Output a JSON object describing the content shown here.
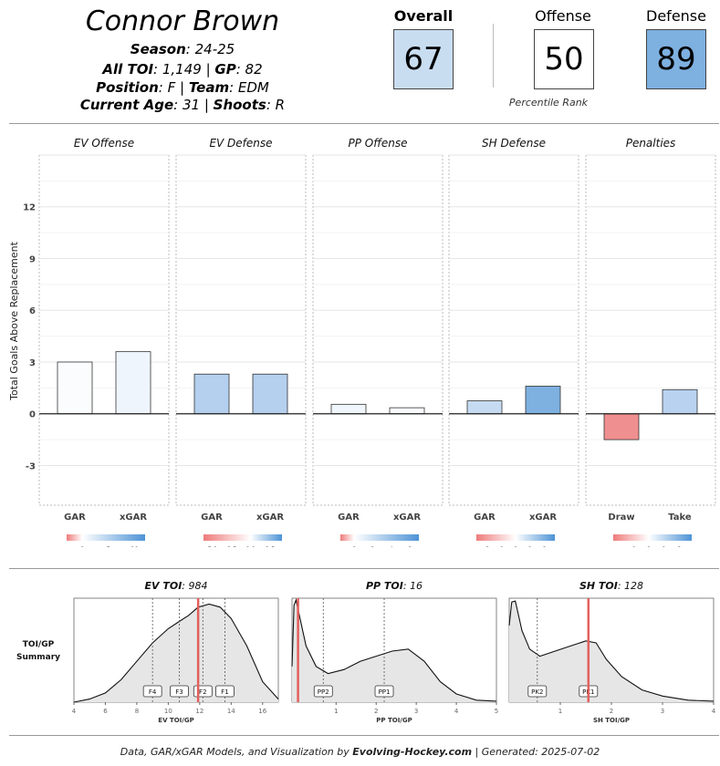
{
  "player": {
    "name": "Connor Brown",
    "season_label": "Season",
    "season": "24-25",
    "toi_label": "All TOI",
    "toi": "1,149",
    "gp_label": "GP",
    "gp": "82",
    "position_label": "Position",
    "position": "F",
    "team_label": "Team",
    "team": "EDM",
    "age_label": "Current Age",
    "age": "31",
    "shoots_label": "Shoots",
    "shoots": "R"
  },
  "scores": {
    "overall_label": "Overall",
    "overall": "67",
    "overall_color": "#c9ddf1",
    "offense_label": "Offense",
    "offense": "50",
    "offense_color": "#ffffff",
    "defense_label": "Defense",
    "defense": "89",
    "defense_color": "#7eb0e0",
    "percentile_label": "Percentile Rank"
  },
  "chart_data": [
    {
      "type": "bar",
      "ylabel": "Total Goals Above Replacement",
      "ylim": [
        -5.3,
        15
      ],
      "yticks": [
        -3,
        0,
        3,
        6,
        9,
        12
      ],
      "grid": true,
      "panels": [
        {
          "title": "EV Offense",
          "categories": [
            "GAR",
            "xGAR"
          ],
          "values": [
            3.0,
            3.6
          ],
          "colors": [
            "#fbfcfe",
            "#eff5fc"
          ],
          "scale": {
            "ticks": [
              "0",
              "5",
              "10"
            ],
            "min": -3,
            "max": 12
          }
        },
        {
          "title": "EV Defense",
          "categories": [
            "GAR",
            "xGAR"
          ],
          "values": [
            2.3,
            2.3
          ],
          "colors": [
            "#b5cfee",
            "#b5cfee"
          ],
          "scale": {
            "ticks": [
              "-5.0",
              "-2.5",
              "0.0",
              "2.5"
            ],
            "min": -6,
            "max": 4
          }
        },
        {
          "title": "PP Offense",
          "categories": [
            "GAR",
            "xGAR"
          ],
          "values": [
            0.55,
            0.35
          ],
          "colors": [
            "#f0f6fc",
            "#f9fbfe"
          ],
          "scale": {
            "ticks": [
              "0",
              "2",
              "4",
              "6"
            ],
            "min": -1.5,
            "max": 7
          }
        },
        {
          "title": "SH Defense",
          "categories": [
            "GAR",
            "xGAR"
          ],
          "values": [
            0.75,
            1.6
          ],
          "colors": [
            "#c6dbf1",
            "#7eb0e0"
          ],
          "scale": {
            "ticks": [
              "-2",
              "-1",
              "0",
              "1",
              "2"
            ],
            "min": -2.7,
            "max": 2.7
          }
        },
        {
          "title": "Penalties",
          "categories": [
            "Draw",
            "Take"
          ],
          "values": [
            -1.5,
            1.4
          ],
          "colors": [
            "#f08f8f",
            "#b9d2ef"
          ],
          "scale": {
            "ticks": [
              "-1",
              "0",
              "1",
              "2"
            ],
            "min": -2.3,
            "max": 2.8
          }
        }
      ]
    },
    {
      "type": "area",
      "side_label_1": "TOI/GP",
      "side_label_2": "Summary",
      "panels": [
        {
          "title_bold": "EV TOI",
          "title_value": "984",
          "xlabel": "EV TOI/GP",
          "xlim": [
            4,
            17
          ],
          "xticks": [
            "4",
            "6",
            "8",
            "10",
            "12",
            "14",
            "16"
          ],
          "player_value": 11.9,
          "markers": [
            {
              "label": "F4",
              "x": 9.0
            },
            {
              "label": "F3",
              "x": 10.7
            },
            {
              "label": "F2",
              "x": 12.2
            },
            {
              "label": "F1",
              "x": 13.6
            }
          ],
          "density": [
            [
              4,
              0.0
            ],
            [
              5,
              0.03
            ],
            [
              6,
              0.09
            ],
            [
              7,
              0.22
            ],
            [
              8,
              0.4
            ],
            [
              9,
              0.58
            ],
            [
              10,
              0.72
            ],
            [
              10.7,
              0.79
            ],
            [
              11.3,
              0.85
            ],
            [
              11.9,
              0.93
            ],
            [
              12.6,
              0.96
            ],
            [
              13.3,
              0.93
            ],
            [
              14,
              0.82
            ],
            [
              15,
              0.55
            ],
            [
              16,
              0.2
            ],
            [
              17,
              0.03
            ]
          ]
        },
        {
          "title_bold": "PP TOI",
          "title_value": "16",
          "xlabel": "PP TOI/GP",
          "xlim": [
            -0.1,
            5
          ],
          "xticks": [
            "1",
            "2",
            "3",
            "4",
            "5"
          ],
          "player_value": 0.05,
          "markers": [
            {
              "label": "PP2",
              "x": 0.68
            },
            {
              "label": "PP1",
              "x": 2.2
            }
          ],
          "density": [
            [
              -0.1,
              0.35
            ],
            [
              -0.05,
              0.95
            ],
            [
              0.0,
              1.0
            ],
            [
              0.1,
              0.82
            ],
            [
              0.25,
              0.55
            ],
            [
              0.5,
              0.35
            ],
            [
              0.8,
              0.28
            ],
            [
              1.2,
              0.32
            ],
            [
              1.6,
              0.4
            ],
            [
              2.0,
              0.45
            ],
            [
              2.4,
              0.5
            ],
            [
              2.8,
              0.52
            ],
            [
              3.2,
              0.4
            ],
            [
              3.6,
              0.2
            ],
            [
              4.0,
              0.08
            ],
            [
              4.5,
              0.02
            ],
            [
              5,
              0.01
            ]
          ]
        },
        {
          "title_bold": "SH TOI",
          "title_value": "128",
          "xlabel": "SH TOI/GP",
          "xlim": [
            0,
            4
          ],
          "xticks": [
            "1",
            "2",
            "3",
            "4"
          ],
          "player_value": 1.55,
          "markers": [
            {
              "label": "PK2",
              "x": 0.55
            },
            {
              "label": "PK1",
              "x": 1.55
            }
          ],
          "density": [
            [
              0,
              0.75
            ],
            [
              0.05,
              0.98
            ],
            [
              0.12,
              0.99
            ],
            [
              0.25,
              0.7
            ],
            [
              0.4,
              0.52
            ],
            [
              0.6,
              0.45
            ],
            [
              0.9,
              0.5
            ],
            [
              1.2,
              0.55
            ],
            [
              1.5,
              0.6
            ],
            [
              1.7,
              0.58
            ],
            [
              1.9,
              0.42
            ],
            [
              2.2,
              0.25
            ],
            [
              2.6,
              0.12
            ],
            [
              3.0,
              0.06
            ],
            [
              3.5,
              0.02
            ],
            [
              4,
              0.01
            ]
          ]
        }
      ]
    }
  ],
  "footer": {
    "prefix": "Data, GAR/xGAR Models, and Visualization by",
    "brand": "Evolving-Hockey.com",
    "suffix": "| Generated: 2025-07-02"
  }
}
